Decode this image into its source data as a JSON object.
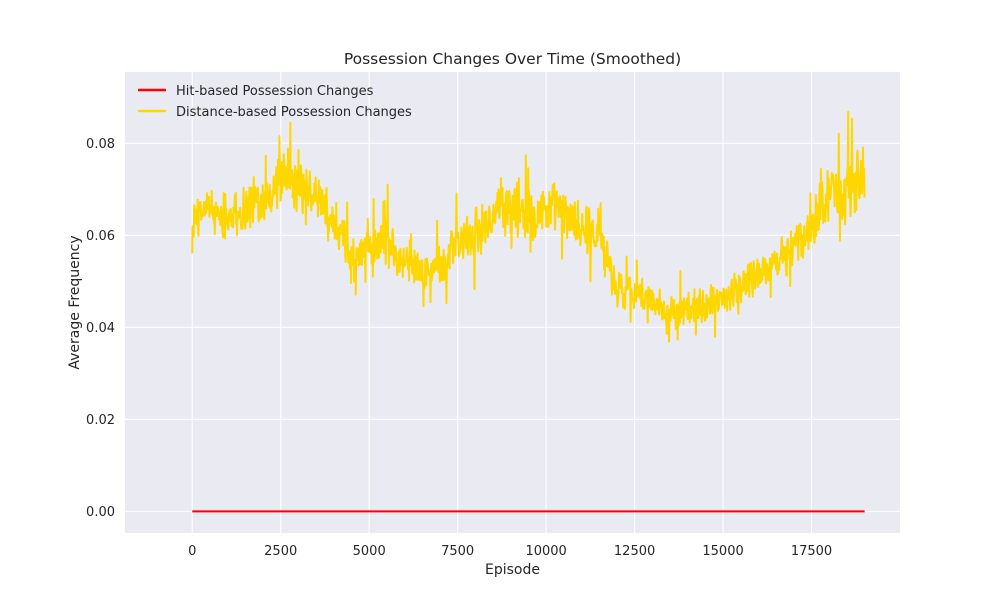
{
  "chart_data": {
    "type": "line",
    "title": "Possession Changes Over Time (Smoothed)",
    "xlabel": "Episode",
    "ylabel": "Average Frequency",
    "xlim": [
      -1900,
      20000
    ],
    "ylim": [
      -0.0047,
      0.0955
    ],
    "xticks": [
      0,
      2500,
      5000,
      7500,
      10000,
      12500,
      15000,
      17500
    ],
    "xtick_labels": [
      "0",
      "2500",
      "5000",
      "7500",
      "10000",
      "12500",
      "15000",
      "17500"
    ],
    "yticks": [
      0.0,
      0.02,
      0.04,
      0.06,
      0.08
    ],
    "ytick_labels": [
      "0.00",
      "0.02",
      "0.04",
      "0.06",
      "0.08"
    ],
    "grid": true,
    "legend_position": "upper-left",
    "noise_note": "Distance-based line is a noisy signal; x/y give its center trend, band gives approximate +/- fluctuation range.",
    "series": [
      {
        "name": "Hit-based Possession Changes",
        "color": "#ff0000",
        "x": [
          0,
          19000
        ],
        "y": [
          0.0,
          0.0
        ]
      },
      {
        "name": "Distance-based Possession Changes",
        "color": "#ffd700",
        "x": [
          0,
          500,
          1000,
          1500,
          2000,
          2500,
          3000,
          3500,
          3900,
          4200,
          4600,
          5000,
          5500,
          6000,
          6500,
          7000,
          7500,
          8000,
          8500,
          9000,
          9500,
          10000,
          10500,
          11000,
          11500,
          12000,
          12500,
          13000,
          13500,
          14000,
          14500,
          15000,
          15500,
          16000,
          16500,
          17000,
          17500,
          18000,
          18500,
          19000
        ],
        "y": [
          0.063,
          0.066,
          0.064,
          0.066,
          0.069,
          0.071,
          0.07,
          0.068,
          0.064,
          0.058,
          0.055,
          0.058,
          0.06,
          0.055,
          0.051,
          0.054,
          0.058,
          0.06,
          0.064,
          0.066,
          0.066,
          0.066,
          0.065,
          0.062,
          0.061,
          0.048,
          0.048,
          0.046,
          0.044,
          0.043,
          0.045,
          0.047,
          0.049,
          0.052,
          0.054,
          0.057,
          0.062,
          0.07,
          0.068,
          0.074
        ],
        "band": [
          0.004,
          0.006,
          0.006,
          0.006,
          0.006,
          0.007,
          0.007,
          0.006,
          0.006,
          0.006,
          0.006,
          0.006,
          0.006,
          0.006,
          0.005,
          0.006,
          0.006,
          0.006,
          0.006,
          0.007,
          0.008,
          0.007,
          0.006,
          0.006,
          0.006,
          0.005,
          0.004,
          0.004,
          0.004,
          0.004,
          0.004,
          0.004,
          0.005,
          0.005,
          0.005,
          0.005,
          0.006,
          0.007,
          0.008,
          0.012
        ]
      }
    ]
  }
}
